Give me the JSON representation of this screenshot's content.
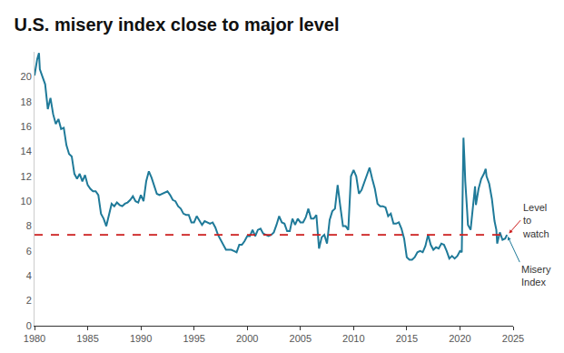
{
  "chart_data": {
    "type": "line",
    "title": "U.S. misery index close to major level",
    "xlim": [
      1980,
      2025
    ],
    "xticks": [
      1980,
      1985,
      1990,
      1995,
      2000,
      2005,
      2010,
      2015,
      2020,
      2025
    ],
    "ylim": [
      0,
      22
    ],
    "yticks": [
      0,
      2,
      4,
      6,
      8,
      10,
      12,
      14,
      16,
      18,
      20
    ],
    "grid": false,
    "legend": false,
    "series": [
      {
        "name": "Misery Index",
        "color": "#1f7a99",
        "line_style": "solid",
        "x": [
          1980.0,
          1980.25,
          1980.42,
          1980.5,
          1980.75,
          1981.0,
          1981.25,
          1981.5,
          1981.75,
          1982.0,
          1982.25,
          1982.5,
          1982.75,
          1983.0,
          1983.25,
          1983.5,
          1983.75,
          1984.0,
          1984.25,
          1984.5,
          1984.75,
          1985.0,
          1985.25,
          1985.5,
          1985.75,
          1986.0,
          1986.25,
          1986.5,
          1986.75,
          1987.0,
          1987.25,
          1987.5,
          1987.75,
          1988.0,
          1988.25,
          1988.5,
          1988.75,
          1989.0,
          1989.25,
          1989.5,
          1989.75,
          1990.0,
          1990.25,
          1990.5,
          1990.75,
          1991.0,
          1991.25,
          1991.5,
          1991.75,
          1992.0,
          1992.25,
          1992.5,
          1992.75,
          1993.0,
          1993.25,
          1993.5,
          1993.75,
          1994.0,
          1994.25,
          1994.5,
          1994.75,
          1995.0,
          1995.25,
          1995.5,
          1995.75,
          1996.0,
          1996.25,
          1996.5,
          1996.75,
          1997.0,
          1997.25,
          1997.5,
          1997.75,
          1998.0,
          1998.25,
          1998.5,
          1998.75,
          1999.0,
          1999.25,
          1999.5,
          1999.75,
          2000.0,
          2000.25,
          2000.5,
          2000.75,
          2001.0,
          2001.25,
          2001.5,
          2001.75,
          2002.0,
          2002.25,
          2002.5,
          2002.75,
          2003.0,
          2003.25,
          2003.5,
          2003.75,
          2004.0,
          2004.25,
          2004.5,
          2004.75,
          2005.0,
          2005.25,
          2005.5,
          2005.75,
          2006.0,
          2006.25,
          2006.5,
          2006.75,
          2007.0,
          2007.25,
          2007.5,
          2007.75,
          2008.0,
          2008.25,
          2008.5,
          2008.75,
          2009.0,
          2009.25,
          2009.5,
          2009.75,
          2010.0,
          2010.25,
          2010.5,
          2010.75,
          2011.0,
          2011.25,
          2011.5,
          2011.75,
          2012.0,
          2012.25,
          2012.5,
          2012.75,
          2013.0,
          2013.25,
          2013.5,
          2013.75,
          2014.0,
          2014.25,
          2014.5,
          2014.75,
          2015.0,
          2015.25,
          2015.5,
          2015.75,
          2016.0,
          2016.25,
          2016.5,
          2016.75,
          2017.0,
          2017.25,
          2017.5,
          2017.75,
          2018.0,
          2018.25,
          2018.5,
          2018.75,
          2019.0,
          2019.25,
          2019.5,
          2019.75,
          2020.0,
          2020.17,
          2020.33,
          2020.42,
          2020.5,
          2020.67,
          2020.75,
          2021.0,
          2021.25,
          2021.42,
          2021.5,
          2021.75,
          2022.0,
          2022.25,
          2022.42,
          2022.5,
          2022.75,
          2023.0,
          2023.25,
          2023.42,
          2023.5,
          2023.75,
          2024.0,
          2024.25,
          2024.42
        ],
        "values": [
          20.1,
          21.4,
          21.9,
          20.6,
          20.0,
          19.4,
          17.4,
          18.3,
          17.0,
          16.2,
          16.6,
          15.8,
          15.9,
          14.5,
          13.8,
          13.6,
          12.2,
          11.8,
          12.2,
          11.6,
          12.1,
          11.3,
          11.0,
          10.8,
          10.8,
          10.5,
          9.0,
          8.6,
          8.0,
          9.0,
          9.8,
          9.6,
          9.9,
          9.7,
          9.6,
          9.8,
          9.9,
          10.1,
          10.4,
          10.0,
          9.9,
          10.5,
          10.0,
          11.6,
          12.4,
          11.9,
          11.2,
          10.6,
          10.5,
          10.6,
          10.7,
          10.8,
          10.5,
          10.1,
          10.0,
          9.6,
          9.4,
          9.0,
          8.9,
          8.9,
          8.3,
          8.3,
          8.8,
          8.4,
          8.1,
          8.4,
          8.3,
          8.2,
          8.3,
          7.9,
          7.3,
          6.9,
          6.4,
          6.1,
          6.1,
          6.1,
          6.0,
          5.9,
          6.5,
          6.5,
          6.8,
          7.2,
          7.2,
          7.7,
          7.2,
          7.7,
          7.8,
          7.4,
          7.3,
          7.2,
          7.3,
          7.5,
          8.1,
          8.8,
          8.3,
          8.2,
          7.6,
          7.6,
          8.6,
          8.1,
          8.6,
          8.3,
          8.3,
          8.7,
          9.4,
          8.6,
          8.6,
          8.9,
          6.2,
          7.1,
          7.3,
          6.6,
          8.5,
          9.2,
          9.4,
          11.3,
          9.6,
          8.0,
          8.0,
          7.7,
          12.0,
          12.5,
          12.0,
          10.6,
          10.9,
          11.5,
          12.1,
          12.7,
          11.8,
          11.0,
          9.8,
          9.6,
          9.6,
          9.5,
          8.8,
          9.0,
          8.2,
          8.2,
          8.3,
          7.8,
          7.0,
          5.5,
          5.3,
          5.3,
          5.5,
          5.9,
          6.0,
          5.9,
          6.4,
          7.3,
          6.5,
          6.1,
          6.3,
          6.2,
          6.6,
          6.5,
          6.0,
          5.4,
          5.6,
          5.4,
          5.6,
          6.0,
          5.9,
          15.1,
          13.4,
          11.6,
          9.3,
          8.1,
          7.7,
          10.0,
          11.2,
          9.7,
          11.0,
          11.8,
          12.2,
          12.6,
          12.0,
          11.4,
          10.2,
          8.4,
          7.7,
          6.6,
          7.5,
          6.9,
          7.0,
          7.3
        ]
      },
      {
        "name": "Level to watch",
        "color": "#cc1f1f",
        "line_style": "dashed",
        "x": [
          1980,
          2024.5
        ],
        "values": [
          7.3,
          7.3
        ]
      }
    ]
  }
}
